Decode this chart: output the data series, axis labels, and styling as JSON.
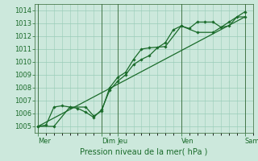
{
  "background_color": "#cce8dc",
  "grid_color": "#99ccb8",
  "line_color": "#1a6b2a",
  "marker_color": "#1a6b2a",
  "ylabel_ticks": [
    1005,
    1006,
    1007,
    1008,
    1009,
    1010,
    1011,
    1012,
    1013,
    1014
  ],
  "xlabel": "Pression niveau de la mer( hPa )",
  "xtick_labels": [
    "Mer",
    "Dim",
    "Jeu",
    "Ven",
    "Sam"
  ],
  "xtick_positions": [
    0,
    4,
    5,
    9,
    13
  ],
  "ylim": [
    1004.5,
    1014.5
  ],
  "xlim": [
    -0.2,
    13.5
  ],
  "vlines_dark": [
    0,
    4,
    5,
    9,
    13
  ],
  "series1_x": [
    0,
    0.5,
    1,
    1.5,
    2,
    2.5,
    3,
    3.5,
    4,
    4.5,
    5,
    5.5,
    6,
    6.5,
    7,
    7.5,
    8,
    8.5,
    9,
    9.5,
    10,
    10.5,
    11,
    11.5,
    12,
    12.5,
    13
  ],
  "series1_y": [
    1005,
    1005.1,
    1006.5,
    1006.6,
    1006.5,
    1006.4,
    1006.1,
    1005.7,
    1006.3,
    1007.8,
    1008.5,
    1009.0,
    1009.8,
    1010.2,
    1010.5,
    1011.1,
    1011.5,
    1012.5,
    1012.8,
    1012.6,
    1013.1,
    1013.1,
    1013.1,
    1012.7,
    1012.8,
    1013.5,
    1013.5
  ],
  "series2_x": [
    0,
    1,
    2,
    3,
    3.5,
    4,
    4.5,
    5,
    5.5,
    6,
    6.5,
    7,
    8,
    9,
    10,
    11,
    12,
    13
  ],
  "series2_y": [
    1005,
    1005.0,
    1006.5,
    1006.5,
    1005.8,
    1006.2,
    1008.0,
    1008.8,
    1009.2,
    1010.2,
    1011.0,
    1011.1,
    1011.2,
    1012.8,
    1012.3,
    1012.3,
    1013.1,
    1013.9
  ],
  "series3_x": [
    0,
    13
  ],
  "series3_y": [
    1005,
    1013.5
  ],
  "fontsize": 6,
  "label_fontsize": 7,
  "tick_color": "#1a6b2a",
  "axis_color": "#336633"
}
